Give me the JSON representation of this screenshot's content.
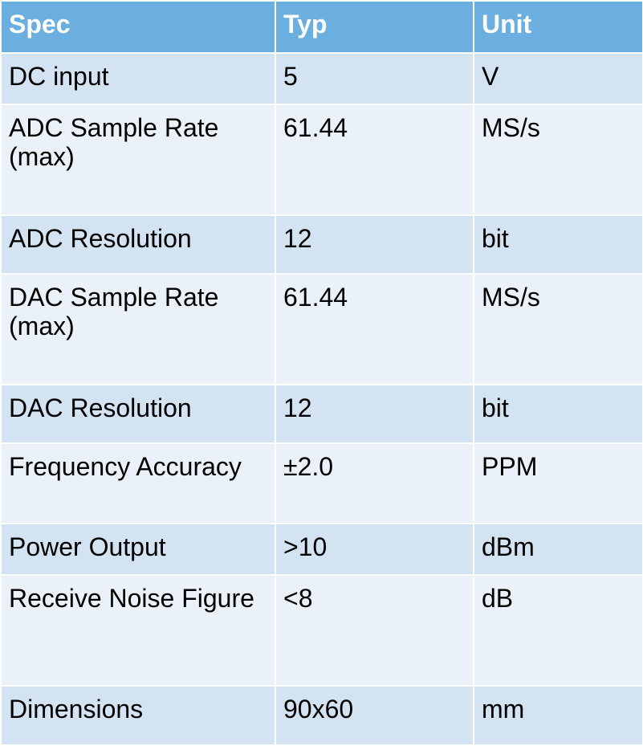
{
  "table": {
    "headers": [
      "Spec",
      "Typ",
      "Unit"
    ],
    "rows": [
      {
        "spec": "DC input",
        "typ": "5",
        "unit": "V"
      },
      {
        "spec": "ADC Sample Rate (max)",
        "typ": "61.44",
        "unit": "MS/s"
      },
      {
        "spec": "ADC Resolution",
        "typ": "12",
        "unit": "bit"
      },
      {
        "spec": "DAC Sample Rate (max)",
        "typ": "61.44",
        "unit": "MS/s"
      },
      {
        "spec": "DAC Resolution",
        "typ": "12",
        "unit": "bit"
      },
      {
        "spec": "Frequency Accuracy",
        "typ": "±2.0",
        "unit": "PPM"
      },
      {
        "spec": "Power Output",
        "typ": ">10",
        "unit": "dBm"
      },
      {
        "spec": "Receive Noise Figure",
        "typ": "<8",
        "unit": "dB"
      },
      {
        "spec": "Dimensions",
        "typ": "90x60",
        "unit": "mm"
      }
    ]
  },
  "colors": {
    "header_bg": "#6aafe0",
    "row_odd_bg": "#d4e3f2",
    "row_even_bg": "#eaf1f8",
    "header_text": "#ffffff",
    "body_text": "#000000"
  }
}
